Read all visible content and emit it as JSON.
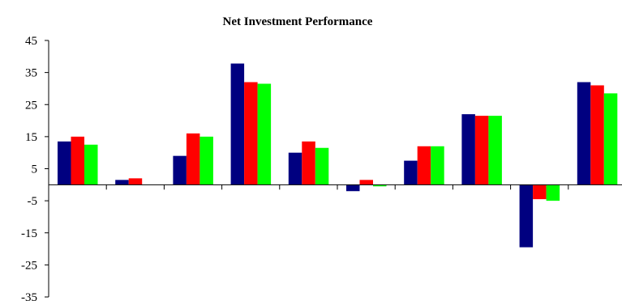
{
  "chart_data": {
    "type": "bar",
    "title": "Net Investment Performance",
    "xlabel": "",
    "ylabel": "",
    "ylim": [
      -35,
      45
    ],
    "yticks": [
      45,
      35,
      25,
      15,
      5,
      -5,
      -15,
      -25,
      -35
    ],
    "categories": [
      "",
      "",
      "",
      "",
      "",
      "",
      "",
      "",
      "",
      ""
    ],
    "grid": false,
    "legend": "none",
    "series": [
      {
        "color": "#000080",
        "values": [
          13.5,
          1.5,
          9.0,
          37.8,
          10.0,
          -2.0,
          7.5,
          22.0,
          -19.5,
          32.0
        ]
      },
      {
        "color": "#ff0000",
        "values": [
          15.0,
          2.0,
          16.0,
          32.0,
          13.5,
          1.5,
          12.0,
          21.5,
          -4.5,
          31.0
        ]
      },
      {
        "color": "#00ff00",
        "values": [
          12.5,
          0.0,
          15.0,
          31.5,
          11.5,
          -0.5,
          12.0,
          21.5,
          -5.0,
          28.5
        ]
      }
    ]
  }
}
